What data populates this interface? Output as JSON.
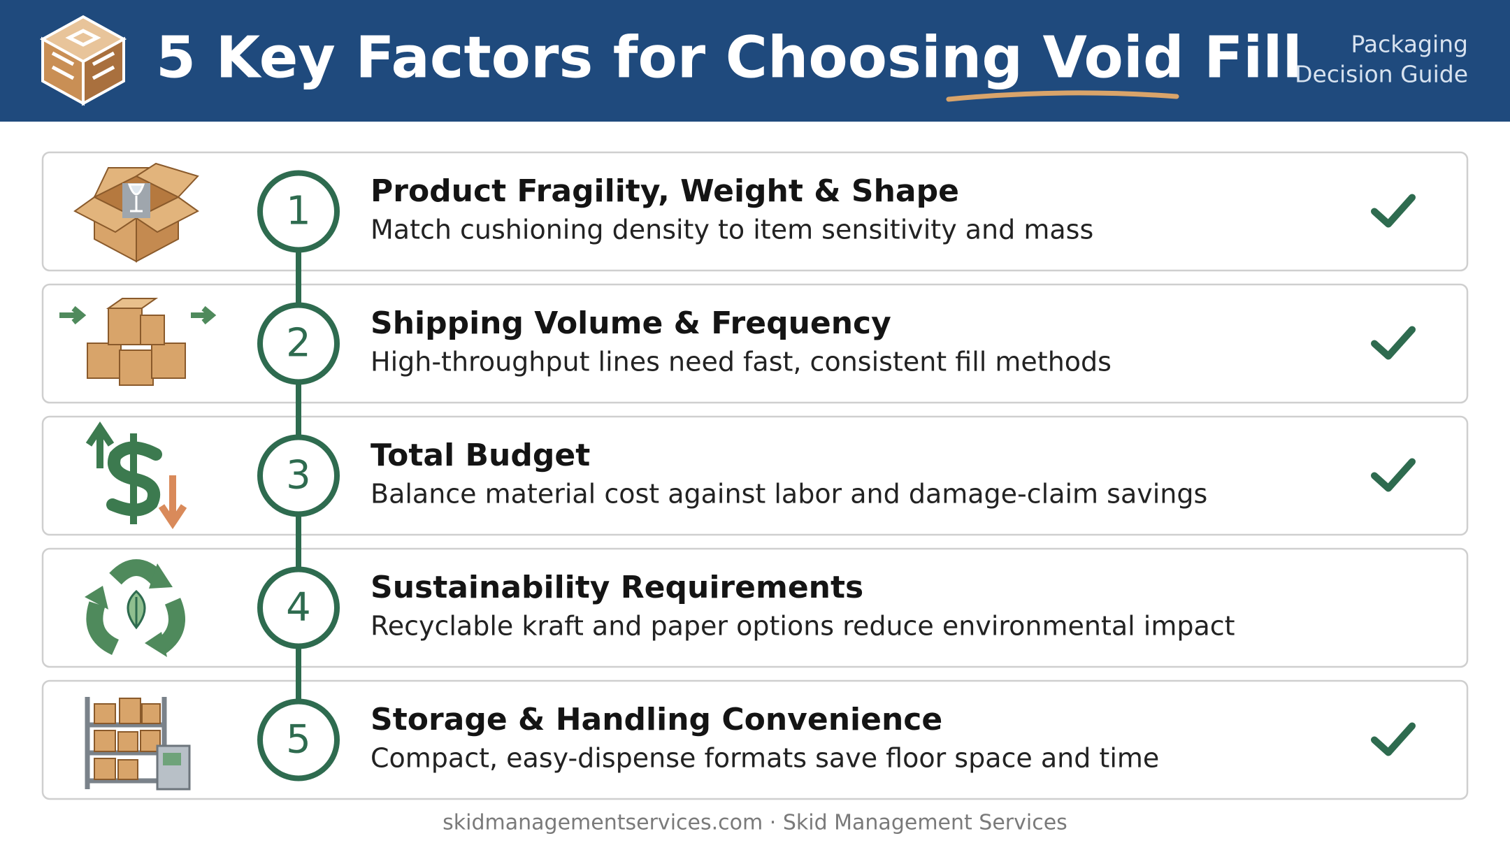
{
  "header": {
    "title": "5 Key Factors for Choosing Void Fill",
    "subtitle_lines": [
      "Packaging",
      "Decision Guide"
    ]
  },
  "items": [
    {
      "number": 1,
      "title": "Product Fragility, Weight & Shape",
      "description": "Match cushioning density to item sensitivity and mass",
      "checked": true
    },
    {
      "number": 2,
      "title": "Shipping Volume & Frequency",
      "description": "High-throughput lines need fast, consistent fill methods",
      "checked": true
    },
    {
      "number": 3,
      "title": "Total Budget",
      "description": "Balance material cost against labor and damage-claim savings",
      "checked": true
    },
    {
      "number": 4,
      "title": "Sustainability Requirements",
      "description": "Recyclable kraft and paper options reduce environmental impact",
      "checked": false
    },
    {
      "number": 5,
      "title": "Storage & Handling Convenience",
      "description": "Compact, easy-dispense formats save floor space and time",
      "checked": true
    }
  ],
  "footer": "skidmanagementservices.com · Skid Management Services"
}
